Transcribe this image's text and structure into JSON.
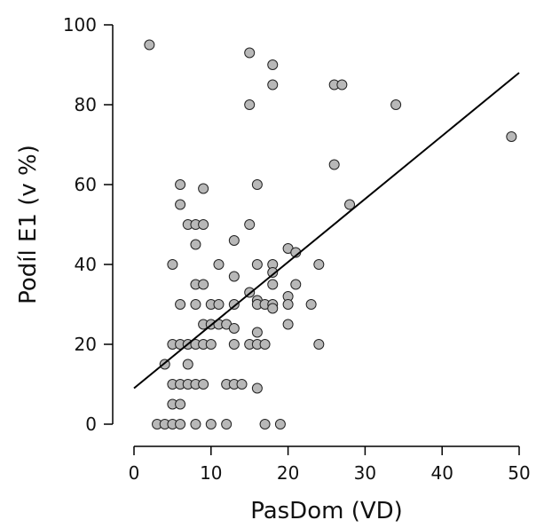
{
  "chart_data": {
    "type": "scatter",
    "title": "",
    "xlabel": "PasDom (VD)",
    "ylabel": "Podíl E1 (v %)",
    "xlim": [
      0,
      50
    ],
    "ylim": [
      0,
      100
    ],
    "xticks": [
      0,
      10,
      20,
      30,
      40,
      50
    ],
    "yticks": [
      0,
      20,
      40,
      60,
      80,
      100
    ],
    "grid": false,
    "legend": "none",
    "point_color": "#b8b8b8",
    "trendline": {
      "x": [
        0,
        50
      ],
      "y": [
        9,
        88
      ]
    },
    "points": [
      [
        2,
        95
      ],
      [
        15,
        93
      ],
      [
        18,
        90
      ],
      [
        18,
        85
      ],
      [
        26,
        85
      ],
      [
        27,
        85
      ],
      [
        34,
        80
      ],
      [
        15,
        80
      ],
      [
        49,
        72
      ],
      [
        26,
        65
      ],
      [
        6,
        60
      ],
      [
        16,
        60
      ],
      [
        9,
        59
      ],
      [
        6,
        55
      ],
      [
        28,
        55
      ],
      [
        7,
        50
      ],
      [
        8,
        50
      ],
      [
        9,
        50
      ],
      [
        15,
        50
      ],
      [
        13,
        46
      ],
      [
        8,
        45
      ],
      [
        20,
        44
      ],
      [
        21,
        43
      ],
      [
        5,
        40
      ],
      [
        11,
        40
      ],
      [
        16,
        40
      ],
      [
        18,
        40
      ],
      [
        24,
        40
      ],
      [
        18,
        38
      ],
      [
        13,
        37
      ],
      [
        8,
        35
      ],
      [
        9,
        35
      ],
      [
        18,
        35
      ],
      [
        21,
        35
      ],
      [
        15,
        33
      ],
      [
        20,
        32
      ],
      [
        16,
        31
      ],
      [
        6,
        30
      ],
      [
        8,
        30
      ],
      [
        10,
        30
      ],
      [
        11,
        30
      ],
      [
        13,
        30
      ],
      [
        16,
        30
      ],
      [
        17,
        30
      ],
      [
        18,
        30
      ],
      [
        20,
        30
      ],
      [
        23,
        30
      ],
      [
        18,
        29
      ],
      [
        9,
        25
      ],
      [
        10,
        25
      ],
      [
        11,
        25
      ],
      [
        12,
        25
      ],
      [
        20,
        25
      ],
      [
        13,
        24
      ],
      [
        16,
        23
      ],
      [
        5,
        20
      ],
      [
        6,
        20
      ],
      [
        7,
        20
      ],
      [
        8,
        20
      ],
      [
        9,
        20
      ],
      [
        10,
        20
      ],
      [
        13,
        20
      ],
      [
        15,
        20
      ],
      [
        16,
        20
      ],
      [
        17,
        20
      ],
      [
        24,
        20
      ],
      [
        4,
        15
      ],
      [
        7,
        15
      ],
      [
        5,
        10
      ],
      [
        6,
        10
      ],
      [
        7,
        10
      ],
      [
        8,
        10
      ],
      [
        9,
        10
      ],
      [
        12,
        10
      ],
      [
        13,
        10
      ],
      [
        14,
        10
      ],
      [
        16,
        9
      ],
      [
        5,
        5
      ],
      [
        6,
        5
      ],
      [
        3,
        0
      ],
      [
        4,
        0
      ],
      [
        5,
        0
      ],
      [
        6,
        0
      ],
      [
        8,
        0
      ],
      [
        10,
        0
      ],
      [
        12,
        0
      ],
      [
        17,
        0
      ],
      [
        19,
        0
      ]
    ]
  }
}
